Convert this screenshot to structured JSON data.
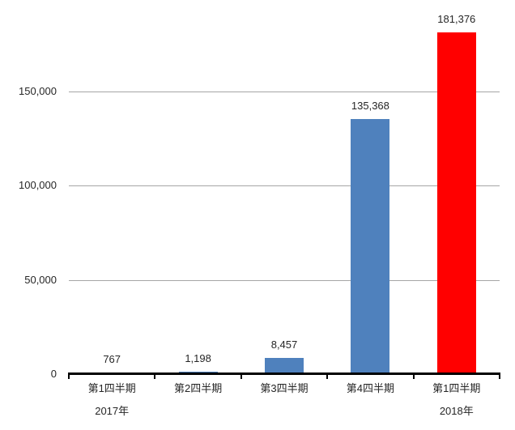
{
  "chart_data": {
    "type": "bar",
    "title": "",
    "legend": "none",
    "categories": [
      {
        "label": "第1四半期",
        "sublabel": "2017年"
      },
      {
        "label": "第2四半期",
        "sublabel": ""
      },
      {
        "label": "第3四半期",
        "sublabel": ""
      },
      {
        "label": "第4四半期",
        "sublabel": ""
      },
      {
        "label": "第1四半期",
        "sublabel": "2018年"
      }
    ],
    "values": [
      767,
      1198,
      8457,
      135368,
      181376
    ],
    "value_labels": [
      "767",
      "1,198",
      "8,457",
      "135,368",
      "181,376"
    ],
    "bar_colors": [
      "#4F81BD",
      "#4F81BD",
      "#4F81BD",
      "#4F81BD",
      "#FF0000"
    ],
    "y_axis": {
      "range": [
        0,
        190000
      ],
      "gridlines": true,
      "ticks": [
        {
          "value": 0,
          "label": "0"
        },
        {
          "value": 50000,
          "label": "50,000"
        },
        {
          "value": 100000,
          "label": "100,000"
        },
        {
          "value": 150000,
          "label": "150,000"
        }
      ]
    },
    "colors": {
      "bar_blue": "#4F81BD",
      "bar_red": "#FF0000",
      "gridline": "#A6A6A6",
      "axis": "#000000",
      "text": "#262626",
      "background": "#FFFFFF"
    }
  }
}
